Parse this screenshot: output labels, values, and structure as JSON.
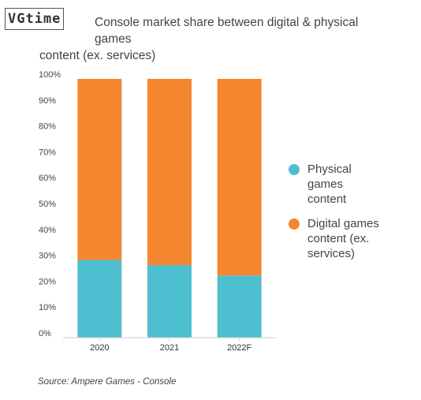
{
  "watermark": {
    "text": "VGtime"
  },
  "header": {
    "title_line1": "Console market share between digital & physical games",
    "title_line2": "content (ex. services)"
  },
  "chart_data": {
    "type": "bar",
    "stacked": true,
    "categories": [
      "2020",
      "2021",
      "2022F"
    ],
    "series": [
      {
        "name": "Physical games content",
        "values": [
          30,
          28,
          24
        ],
        "color": "#4dbfd1"
      },
      {
        "name": "Digital games content (ex. services)",
        "values": [
          70,
          72,
          76
        ],
        "color": "#f4862f"
      }
    ],
    "ylim": [
      0,
      100
    ],
    "yticks": [
      "0%",
      "10%",
      "20%",
      "30%",
      "40%",
      "50%",
      "60%",
      "70%",
      "80%",
      "90%",
      "100%"
    ],
    "grid": false,
    "legend_position": "right"
  },
  "legend": {
    "items": [
      {
        "label_lines": [
          "Physical",
          "games",
          "content"
        ],
        "color": "#4dbfd1",
        "icon": "circle"
      },
      {
        "label_lines": [
          "Digital games",
          "content (ex.",
          "services)"
        ],
        "color": "#f4862f",
        "icon": "circle"
      }
    ]
  },
  "footer": {
    "source": "Source: Ampere Games - Console"
  }
}
